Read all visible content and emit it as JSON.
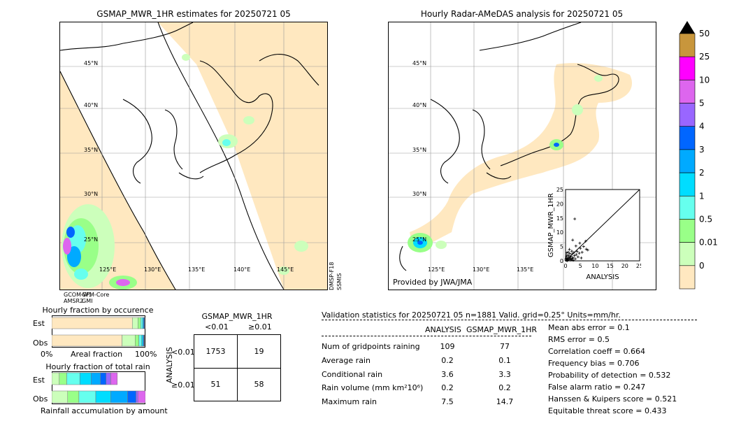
{
  "left_map": {
    "title": "GSMAP_MWR_1HR estimates for 20250721 05",
    "lat_labels": [
      "45°N",
      "40°N",
      "35°N",
      "30°N",
      "25°N"
    ],
    "lon_labels": [
      "125°E",
      "130°E",
      "135°E",
      "140°E",
      "145°E"
    ],
    "swath_labels": [
      "GCOM-W1",
      "GPM-Core",
      "AMSR2",
      "GMI"
    ],
    "side_label_1": "DMSP-F18",
    "side_label_2": "SSMIS"
  },
  "right_map": {
    "title": "Hourly Radar-AMeDAS analysis for 20250721 05",
    "lat_labels": [
      "45°N",
      "40°N",
      "35°N",
      "30°N",
      "25°N"
    ],
    "lon_labels": [
      "125°E",
      "130°E",
      "135°E"
    ],
    "credit": "Provided by JWA/JMA"
  },
  "colorbar": {
    "labels": [
      "50",
      "25",
      "10",
      "5",
      "4",
      "3",
      "2",
      "1",
      "0.5",
      "0.01",
      "0"
    ],
    "colors": [
      "#c8963c",
      "#ff00ff",
      "#dd66ee",
      "#9966ff",
      "#0066ff",
      "#00aaff",
      "#00ddff",
      "#66ffee",
      "#99ff88",
      "#ccffbb",
      "#ffe8c0"
    ],
    "over_color": "#000000"
  },
  "chart_data": [
    {
      "type": "scatter",
      "title": "",
      "xlabel": "ANALYSIS",
      "ylabel": "GSMAP_MWR_1HR",
      "xlim": [
        0,
        25
      ],
      "ylim": [
        0,
        25
      ],
      "x_ticks": [
        "0",
        "5",
        "10",
        "15",
        "20",
        "25"
      ],
      "y_ticks": [
        "0",
        "5",
        "10",
        "15",
        "20",
        "25"
      ],
      "diagonal": true,
      "points": [
        [
          0.2,
          0.1
        ],
        [
          0.4,
          0.3
        ],
        [
          0.6,
          0.8
        ],
        [
          0.8,
          0.4
        ],
        [
          1.0,
          1.2
        ],
        [
          1.2,
          0.6
        ],
        [
          0.3,
          1.5
        ],
        [
          1.5,
          0.9
        ],
        [
          1.8,
          1.6
        ],
        [
          2.0,
          0.5
        ],
        [
          2.2,
          2.4
        ],
        [
          0.5,
          2.0
        ],
        [
          2.5,
          1.1
        ],
        [
          2.8,
          2.9
        ],
        [
          3.0,
          1.8
        ],
        [
          0.9,
          3.1
        ],
        [
          3.3,
          0.7
        ],
        [
          1.4,
          2.6
        ],
        [
          2.1,
          3.4
        ],
        [
          3.6,
          2.2
        ],
        [
          0.7,
          0.2
        ],
        [
          1.1,
          1.9
        ],
        [
          1.7,
          0.3
        ],
        [
          0.2,
          0.9
        ],
        [
          2.6,
          0.2
        ],
        [
          3.9,
          3.3
        ],
        [
          4.2,
          1.4
        ],
        [
          1.3,
          4.0
        ],
        [
          4.6,
          2.7
        ],
        [
          5.0,
          4.4
        ],
        [
          3.5,
          5.2
        ],
        [
          5.6,
          3.0
        ],
        [
          6.1,
          5.0
        ],
        [
          4.8,
          6.2
        ],
        [
          2.4,
          7.3
        ],
        [
          7.0,
          4.1
        ],
        [
          5.3,
          1.0
        ],
        [
          3.1,
          14.7
        ],
        [
          6.8,
          6.9
        ],
        [
          7.5,
          3.8
        ],
        [
          0.1,
          0.5
        ],
        [
          0.6,
          0.1
        ],
        [
          1.6,
          1.3
        ],
        [
          2.3,
          0.8
        ],
        [
          0.4,
          2.8
        ]
      ]
    },
    {
      "type": "bar",
      "title": "Hourly fraction by occurence",
      "xlabel": "Areal fraction",
      "x_ticks": [
        "0%",
        "100%"
      ],
      "categories": [
        "Est",
        "Obs"
      ],
      "series": [
        {
          "color": "#ffe8c0",
          "values": [
            0.86,
            0.75
          ]
        },
        {
          "color": "#ccffbb",
          "values": [
            0.06,
            0.14
          ]
        },
        {
          "color": "#99ff88",
          "values": [
            0.03,
            0.04
          ]
        },
        {
          "color": "#66ffee",
          "values": [
            0.02,
            0.03
          ]
        },
        {
          "color": "#00ddff",
          "values": [
            0.01,
            0.015
          ]
        },
        {
          "color": "#0066ff",
          "values": [
            0.01,
            0.01
          ]
        },
        {
          "color": "#000000",
          "values": [
            0.004,
            0.004
          ]
        }
      ]
    },
    {
      "type": "bar",
      "title": "Hourly fraction of total rain",
      "xlabel": "Rainfall accumulation by amount",
      "categories": [
        "Est",
        "Obs"
      ],
      "series": [
        {
          "color": "#ccffbb",
          "values": [
            0.08,
            0.17
          ]
        },
        {
          "color": "#99ff88",
          "values": [
            0.08,
            0.12
          ]
        },
        {
          "color": "#66ffee",
          "values": [
            0.14,
            0.18
          ]
        },
        {
          "color": "#00ddff",
          "values": [
            0.12,
            0.16
          ]
        },
        {
          "color": "#00aaff",
          "values": [
            0.1,
            0.18
          ]
        },
        {
          "color": "#0066ff",
          "values": [
            0.06,
            0.09
          ]
        },
        {
          "color": "#9966ff",
          "values": [
            0.05,
            0.02
          ]
        },
        {
          "color": "#dd66ee",
          "values": [
            0.07,
            0.08
          ]
        }
      ]
    }
  ],
  "contingency": {
    "title": "GSMAP_MWR_1HR",
    "col_headers": [
      "<0.01",
      "≥0.01"
    ],
    "row_label": "ANALYSIS",
    "row_headers": [
      "<0.01",
      "≥0.01"
    ],
    "cells": [
      [
        "1753",
        "19"
      ],
      [
        "51",
        "58"
      ]
    ]
  },
  "validation": {
    "header": "Validation statistics for 20250721 05  n=1881 Valid. grid=0.25° Units=mm/hr.",
    "col_analysis": "ANALYSIS",
    "col_gsmap": "GSMAP_MWR_1HR",
    "rows": [
      {
        "label": "Num of gridpoints raining",
        "a": "109",
        "g": "77"
      },
      {
        "label": "Average rain",
        "a": "0.2",
        "g": "0.1"
      },
      {
        "label": "Conditional rain",
        "a": "3.6",
        "g": "3.3"
      },
      {
        "label": "Rain volume (mm km²10⁶)",
        "a": "0.2",
        "g": "0.2"
      },
      {
        "label": "Maximum rain",
        "a": "7.5",
        "g": "14.7"
      }
    ],
    "scores": [
      "Mean abs error =    0.1",
      "RMS error =    0.5",
      "Correlation coeff =  0.664",
      "Frequency bias =  0.706",
      "Probability of detection =  0.532",
      "False alarm ratio =  0.247",
      "Hanssen & Kuipers score =  0.521",
      "Equitable threat score =  0.433"
    ]
  }
}
